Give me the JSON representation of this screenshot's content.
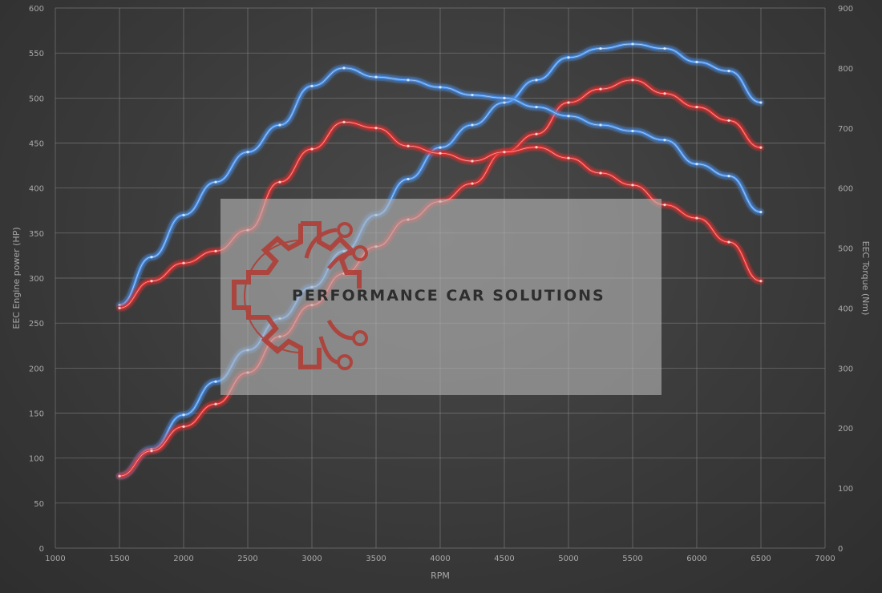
{
  "chart_data": {
    "type": "line",
    "title": "",
    "xlabel": "RPM",
    "ylabel_left": "EEC Engine power (HP)",
    "ylabel_right": "EEC Torque (Nm)",
    "xlim": [
      1000,
      7000
    ],
    "ylim_left": [
      0,
      600
    ],
    "ylim_right": [
      0,
      900
    ],
    "x_ticks": [
      1000,
      1500,
      2000,
      2500,
      3000,
      3500,
      4000,
      4500,
      5000,
      5500,
      6000,
      6500,
      7000
    ],
    "y_left_ticks": [
      0,
      50,
      100,
      150,
      200,
      250,
      300,
      350,
      400,
      450,
      500,
      550,
      600
    ],
    "y_right_ticks": [
      0,
      100,
      200,
      300,
      400,
      500,
      600,
      700,
      800,
      900
    ],
    "grid": true,
    "series": [
      {
        "color": "#4a90e8",
        "axis": "left",
        "kind": "power",
        "x": [
          1500,
          1750,
          2000,
          2250,
          2500,
          2750,
          3000,
          3250,
          3500,
          3750,
          4000,
          4250,
          4500,
          4750,
          5000,
          5250,
          5500,
          5750,
          6000,
          6250,
          6500
        ],
        "y": [
          80,
          110,
          148,
          185,
          220,
          255,
          290,
          330,
          370,
          410,
          445,
          470,
          495,
          520,
          545,
          555,
          560,
          555,
          540,
          530,
          495
        ]
      },
      {
        "color": "#e03030",
        "axis": "left",
        "kind": "power",
        "x": [
          1500,
          1750,
          2000,
          2250,
          2500,
          2750,
          3000,
          3250,
          3500,
          3750,
          4000,
          4250,
          4500,
          4750,
          5000,
          5250,
          5500,
          5750,
          6000,
          6250,
          6500
        ],
        "y": [
          80,
          108,
          135,
          160,
          195,
          235,
          270,
          305,
          335,
          365,
          385,
          405,
          440,
          460,
          495,
          510,
          520,
          505,
          490,
          475,
          445
        ]
      },
      {
        "color": "#4a90e8",
        "axis": "right",
        "kind": "torque",
        "x": [
          1500,
          1750,
          2000,
          2250,
          2500,
          2750,
          3000,
          3250,
          3500,
          3750,
          4000,
          4250,
          4500,
          4750,
          5000,
          5250,
          5500,
          5750,
          6000,
          6250,
          6500
        ],
        "y": [
          405,
          485,
          555,
          610,
          660,
          705,
          770,
          800,
          785,
          780,
          768,
          755,
          750,
          735,
          720,
          705,
          695,
          680,
          640,
          620,
          560
        ]
      },
      {
        "color": "#e03030",
        "axis": "right",
        "kind": "torque",
        "x": [
          1500,
          1750,
          2000,
          2250,
          2500,
          2750,
          3000,
          3250,
          3500,
          3750,
          4000,
          4250,
          4500,
          4750,
          5000,
          5250,
          5500,
          5750,
          6000,
          6250,
          6500
        ],
        "y": [
          400,
          445,
          475,
          495,
          530,
          610,
          665,
          710,
          700,
          670,
          658,
          645,
          660,
          668,
          650,
          625,
          605,
          572,
          550,
          510,
          445
        ]
      }
    ]
  },
  "watermark": {
    "brand": "PERFORMANCE CAR SOLUTIONS",
    "accent": "#b23a32"
  }
}
